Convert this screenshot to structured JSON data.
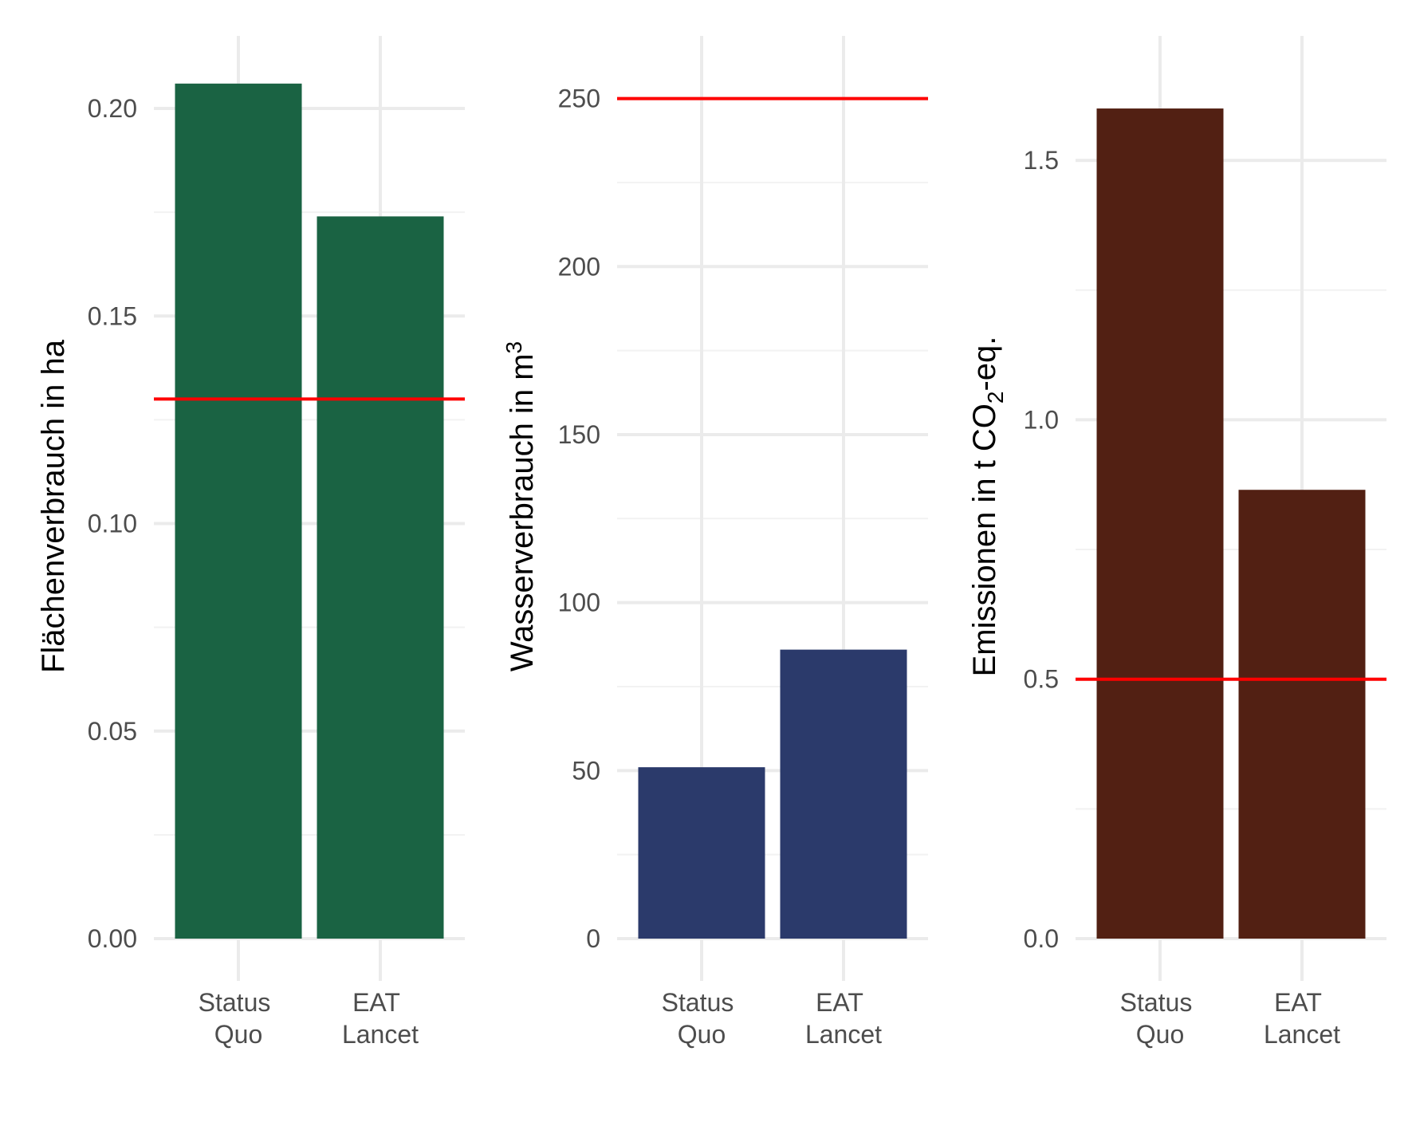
{
  "chart_data": [
    {
      "type": "bar",
      "categories": [
        [
          "Status",
          "Quo"
        ],
        [
          "EAT",
          "Lancet"
        ]
      ],
      "values": [
        0.206,
        0.174
      ],
      "reference_line": 0.13,
      "ylabel": "Flächenverbrauch in ha",
      "ylim": [
        0,
        0.21
      ],
      "yticks": [
        "0.00",
        "0.05",
        "0.10",
        "0.15",
        "0.20"
      ],
      "bar_color": "#1a6343",
      "ref_color": "#ff0000",
      "grid": true
    },
    {
      "type": "bar",
      "categories": [
        [
          "Status",
          "Quo"
        ],
        [
          "EAT",
          "Lancet"
        ]
      ],
      "values": [
        51,
        86
      ],
      "reference_line": 250,
      "ylabel": {
        "base": "Wasserverbrauch in m",
        "sup": "3"
      },
      "ylim": [
        0,
        262
      ],
      "yticks": [
        "0",
        "50",
        "100",
        "150",
        "200",
        "250"
      ],
      "bar_color": "#2b3a6b",
      "ref_color": "#ff0000",
      "grid": true
    },
    {
      "type": "bar",
      "categories": [
        [
          "Status",
          "Quo"
        ],
        [
          "EAT",
          "Lancet"
        ]
      ],
      "values": [
        1.6,
        0.865
      ],
      "reference_line": 0.5,
      "ylabel": {
        "base": "Emissionen in t CO",
        "sub": "2",
        "tail": "-eq."
      },
      "ylim": [
        0,
        1.68
      ],
      "yticks": [
        "0.0",
        "0.5",
        "1.0",
        "1.5"
      ],
      "bar_color": "#522013",
      "ref_color": "#ff0000",
      "grid": true
    }
  ]
}
